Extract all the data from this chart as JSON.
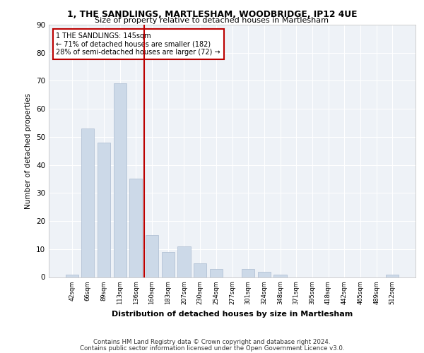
{
  "title1": "1, THE SANDLINGS, MARTLESHAM, WOODBRIDGE, IP12 4UE",
  "title2": "Size of property relative to detached houses in Martlesham",
  "xlabel": "Distribution of detached houses by size in Martlesham",
  "ylabel": "Number of detached properties",
  "bar_labels": [
    "42sqm",
    "66sqm",
    "89sqm",
    "113sqm",
    "136sqm",
    "160sqm",
    "183sqm",
    "207sqm",
    "230sqm",
    "254sqm",
    "277sqm",
    "301sqm",
    "324sqm",
    "348sqm",
    "371sqm",
    "395sqm",
    "418sqm",
    "442sqm",
    "465sqm",
    "489sqm",
    "512sqm"
  ],
  "bar_values": [
    1,
    53,
    48,
    69,
    35,
    15,
    9,
    11,
    5,
    3,
    0,
    3,
    2,
    1,
    0,
    0,
    0,
    0,
    0,
    0,
    1
  ],
  "bar_color": "#ccd9e8",
  "bar_edgecolor": "#aabbd0",
  "vline_x_index": 4.5,
  "vline_color": "#bb0000",
  "annotation_line1": "1 THE SANDLINGS: 145sqm",
  "annotation_line2": "← 71% of detached houses are smaller (182)",
  "annotation_line3": "28% of semi-detached houses are larger (72) →",
  "annotation_box_color": "#bb0000",
  "ylim": [
    0,
    90
  ],
  "yticks": [
    0,
    10,
    20,
    30,
    40,
    50,
    60,
    70,
    80,
    90
  ],
  "bg_color": "#eef2f7",
  "grid_color": "#ffffff",
  "footer_line1": "Contains HM Land Registry data © Crown copyright and database right 2024.",
  "footer_line2": "Contains public sector information licensed under the Open Government Licence v3.0."
}
